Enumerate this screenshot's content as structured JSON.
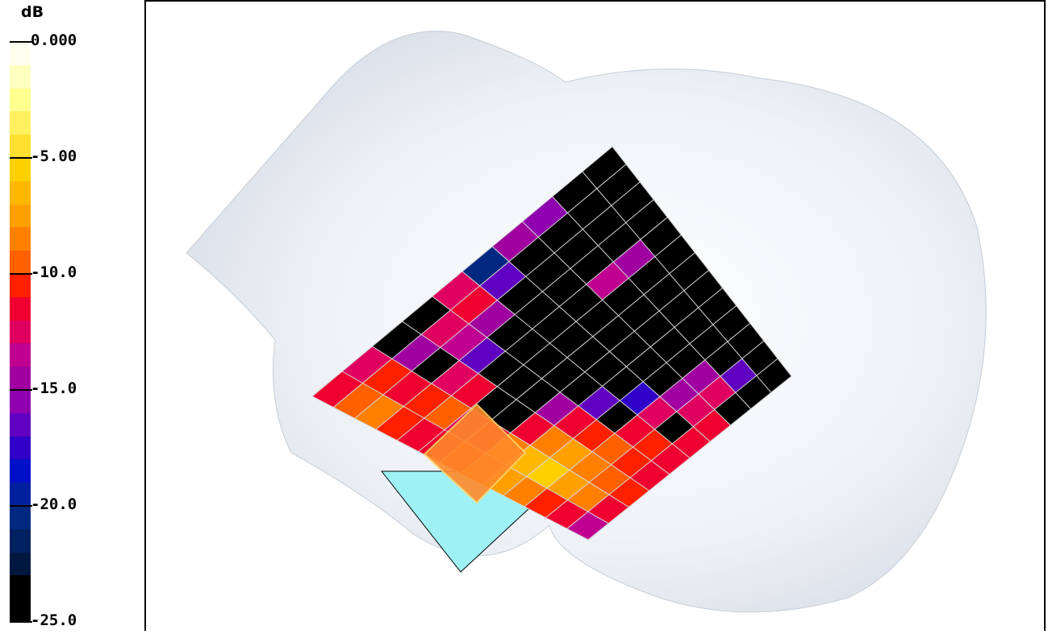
{
  "chart_data": {
    "type": "heatmap",
    "legend": {
      "unit": "dB",
      "range": [
        -25,
        0
      ],
      "ticks": [
        {
          "value": 0,
          "label": "0.000"
        },
        {
          "value": -5,
          "label": "-5.00"
        },
        {
          "value": -10,
          "label": "-10.0"
        },
        {
          "value": -15,
          "label": "-15.0"
        },
        {
          "value": -20,
          "label": "-20.0"
        },
        {
          "value": -25,
          "label": "-25.0"
        }
      ],
      "levels": [
        {
          "from": 0,
          "to": -1,
          "color": "#fffff0"
        },
        {
          "from": -1,
          "to": -2,
          "color": "#ffffc0"
        },
        {
          "from": -2,
          "to": -3,
          "color": "#ffff90"
        },
        {
          "from": -3,
          "to": -4,
          "color": "#fff060"
        },
        {
          "from": -4,
          "to": -5,
          "color": "#ffe030"
        },
        {
          "from": -5,
          "to": -6,
          "color": "#ffd000"
        },
        {
          "from": -6,
          "to": -7,
          "color": "#ffb800"
        },
        {
          "from": -7,
          "to": -8,
          "color": "#ffa000"
        },
        {
          "from": -8,
          "to": -9,
          "color": "#ff8000"
        },
        {
          "from": -9,
          "to": -10,
          "color": "#ff6000"
        },
        {
          "from": -10,
          "to": -11,
          "color": "#ff2000"
        },
        {
          "from": -11,
          "to": -12,
          "color": "#f00030"
        },
        {
          "from": -12,
          "to": -13,
          "color": "#e00060"
        },
        {
          "from": -13,
          "to": -14,
          "color": "#c00090"
        },
        {
          "from": -14,
          "to": -15,
          "color": "#a000a0"
        },
        {
          "from": -15,
          "to": -16,
          "color": "#9000b0"
        },
        {
          "from": -16,
          "to": -17,
          "color": "#6000c0"
        },
        {
          "from": -17,
          "to": -18,
          "color": "#3000c8"
        },
        {
          "from": -18,
          "to": -19,
          "color": "#0010c8"
        },
        {
          "from": -19,
          "to": -20,
          "color": "#0020a0"
        },
        {
          "from": -20,
          "to": -21,
          "color": "#002880"
        },
        {
          "from": -21,
          "to": -22,
          "color": "#002060"
        },
        {
          "from": -22,
          "to": -23,
          "color": "#001840"
        },
        {
          "from": -23,
          "to": -24,
          "color": "#000000"
        },
        {
          "from": -24,
          "to": -25,
          "color": "#000000"
        }
      ]
    },
    "grid": {
      "rows": 10,
      "cols": 13
    },
    "field_db": [
      [
        -25,
        -25,
        -25,
        -25,
        -25,
        -25,
        -25,
        -25,
        -25,
        -25,
        -25,
        -25,
        -25
      ],
      [
        -25,
        -25,
        -25,
        -25,
        -14,
        -25,
        -25,
        -25,
        -25,
        -25,
        -25,
        -16,
        -25
      ],
      [
        -15,
        -25,
        -25,
        -25,
        -13,
        -25,
        -25,
        -25,
        -25,
        -25,
        -14,
        -12,
        -25
      ],
      [
        -14,
        -25,
        -25,
        -25,
        -25,
        -25,
        -25,
        -25,
        -25,
        -25,
        -14,
        -12,
        -11
      ],
      [
        -20,
        -16,
        -25,
        -25,
        -25,
        -25,
        -25,
        -25,
        -25,
        -17,
        -12,
        -25,
        -11
      ],
      [
        -12,
        -11,
        -14,
        -25,
        -25,
        -25,
        -25,
        -25,
        -16,
        -25,
        -11,
        -10,
        -11
      ],
      [
        -25,
        -12,
        -13,
        -16,
        -25,
        -25,
        -25,
        -14,
        -11,
        -10,
        -9,
        -10,
        -11
      ],
      [
        -25,
        -14,
        -25,
        -12,
        -11,
        -25,
        -25,
        -11,
        -8,
        -7,
        -8,
        -9,
        -10
      ],
      [
        -12,
        -10,
        -11,
        -10,
        -9,
        -12,
        -11,
        -8,
        -6,
        -5,
        -7,
        -8,
        -11
      ],
      [
        -11,
        -9,
        -8,
        -10,
        -11,
        -11,
        -10,
        -9,
        -7,
        -8,
        -10,
        -11,
        -13
      ]
    ]
  }
}
